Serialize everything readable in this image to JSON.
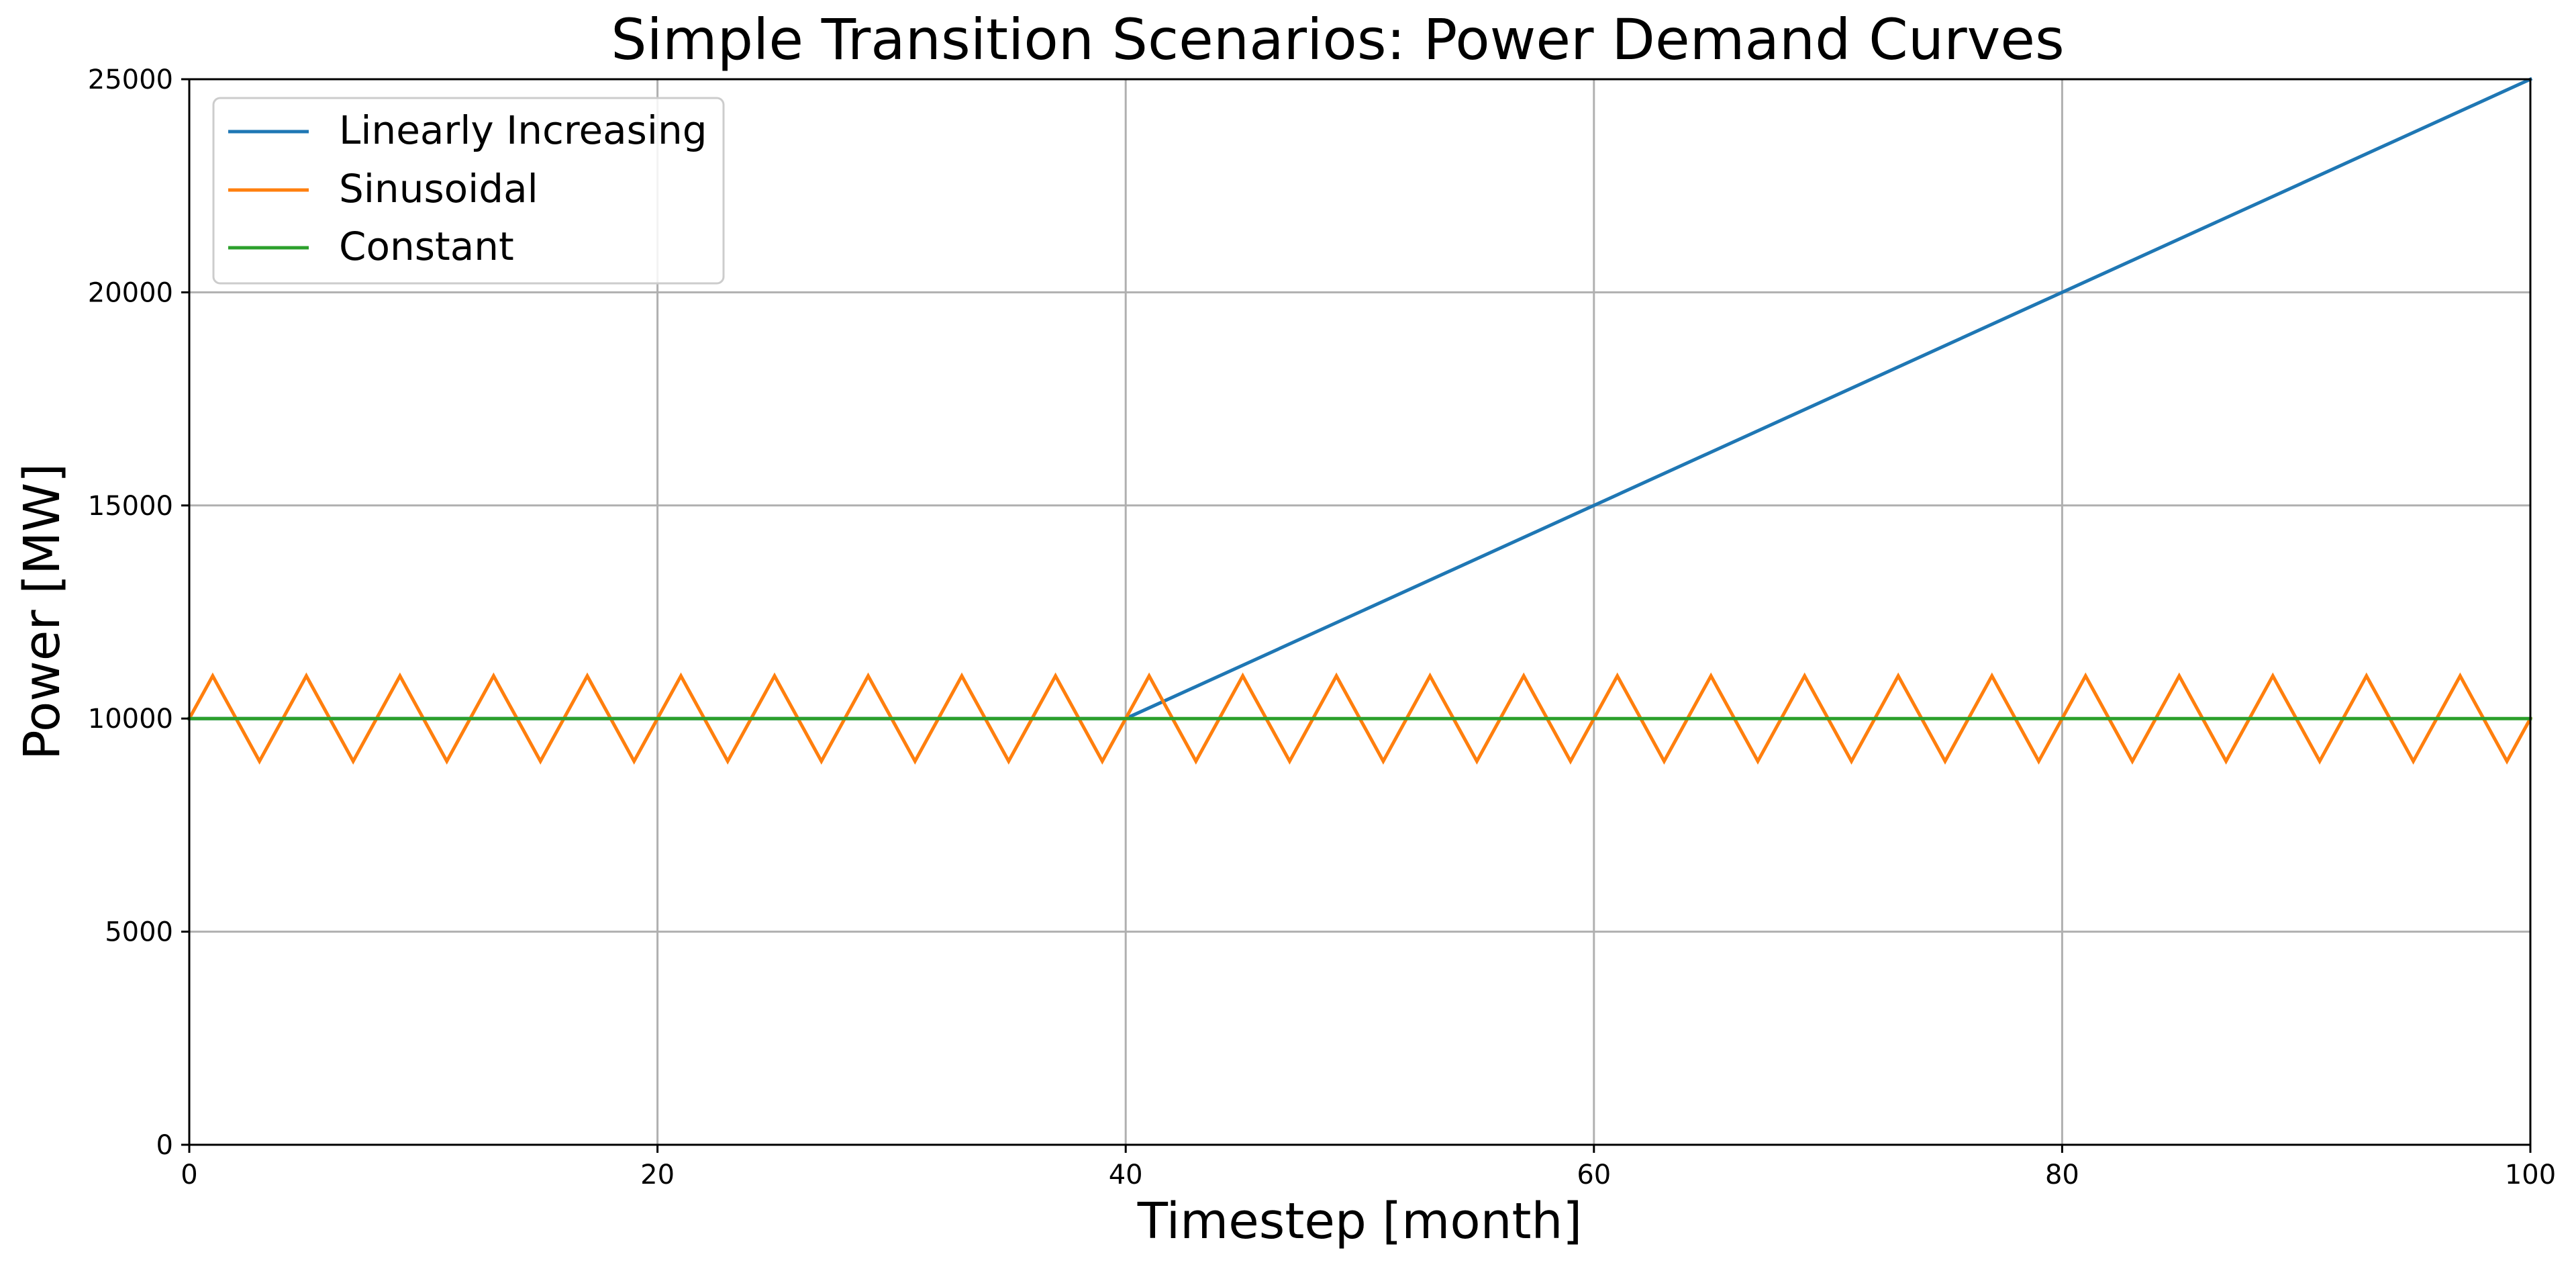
{
  "chart_data": {
    "type": "line",
    "title": "Simple Transition Scenarios: Power Demand Curves",
    "xlabel": "Timestep [month]",
    "ylabel": "Power [MW]",
    "xlim": [
      0,
      100
    ],
    "ylim": [
      0,
      25000
    ],
    "x_ticks": [
      0,
      20,
      40,
      60,
      80,
      100
    ],
    "y_ticks": [
      0,
      5000,
      10000,
      15000,
      20000,
      25000
    ],
    "grid": true,
    "legend_position": "top-left",
    "series": [
      {
        "name": "Linearly Increasing",
        "color": "#1f77b4",
        "x": [
          0,
          40,
          100
        ],
        "y": [
          10000,
          10000,
          25000
        ]
      },
      {
        "name": "Sinusoidal",
        "color": "#ff7f0e",
        "x": [
          0,
          1,
          3,
          5,
          7,
          9,
          11,
          13,
          15,
          17,
          19,
          21,
          23,
          25,
          27,
          29,
          31,
          33,
          35,
          37,
          39,
          41,
          43,
          45,
          47,
          49,
          51,
          53,
          55,
          57,
          59,
          61,
          63,
          65,
          67,
          69,
          71,
          73,
          75,
          77,
          79,
          81,
          83,
          85,
          87,
          89,
          91,
          93,
          95,
          97,
          99,
          100
        ],
        "y": [
          10000,
          11000,
          9000,
          11000,
          9000,
          11000,
          9000,
          11000,
          9000,
          11000,
          9000,
          11000,
          9000,
          11000,
          9000,
          11000,
          9000,
          11000,
          9000,
          11000,
          9000,
          11000,
          9000,
          11000,
          9000,
          11000,
          9000,
          11000,
          9000,
          11000,
          9000,
          11000,
          9000,
          11000,
          9000,
          11000,
          9000,
          11000,
          9000,
          11000,
          9000,
          11000,
          9000,
          11000,
          9000,
          11000,
          9000,
          11000,
          9000,
          11000,
          9000,
          10000
        ]
      },
      {
        "name": "Constant",
        "color": "#2ca02c",
        "x": [
          0,
          100
        ],
        "y": [
          10000,
          10000
        ]
      }
    ]
  }
}
